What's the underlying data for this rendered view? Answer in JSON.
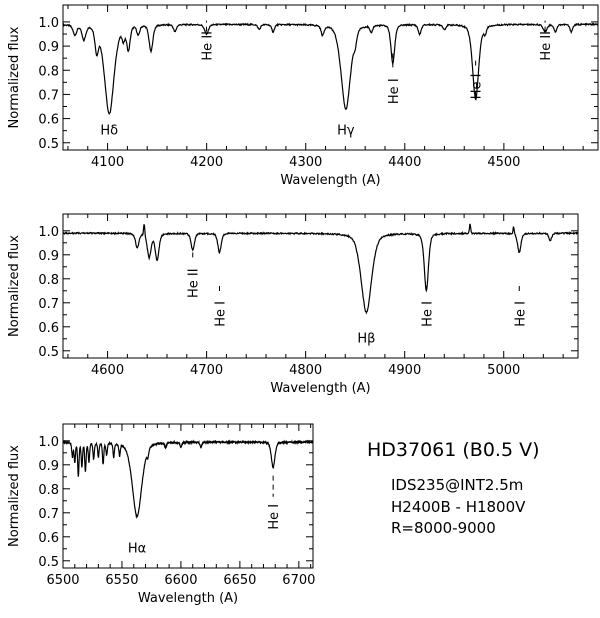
{
  "chart_data": [
    {
      "type": "line",
      "xlabel": "Wavelength (A)",
      "ylabel": "Normalized flux",
      "xlim": [
        4055,
        4595
      ],
      "ylim": [
        0.47,
        1.07
      ],
      "xticks": [
        4100,
        4200,
        4300,
        4400,
        4500
      ],
      "yticks": [
        0.5,
        0.6,
        0.7,
        0.8,
        0.9,
        1.0
      ],
      "continuum": 0.99,
      "lines": [
        {
          "x": 4067,
          "depth": 0.04,
          "width": 2
        },
        {
          "x": 4076,
          "depth": 0.06,
          "width": 2
        },
        {
          "x": 4089,
          "depth": 0.1,
          "width": 1.8
        },
        {
          "x": 4101.7,
          "depth": 0.37,
          "width": 5
        },
        {
          "x": 4116,
          "depth": 0.05,
          "width": 1.6
        },
        {
          "x": 4121,
          "depth": 0.1,
          "width": 1.8
        },
        {
          "x": 4131,
          "depth": 0.04,
          "width": 1.5
        },
        {
          "x": 4143.8,
          "depth": 0.11,
          "width": 2
        },
        {
          "x": 4168,
          "depth": 0.03,
          "width": 1.5
        },
        {
          "x": 4199.8,
          "depth": 0.04,
          "width": 2
        },
        {
          "x": 4253,
          "depth": 0.02,
          "width": 1.5
        },
        {
          "x": 4267,
          "depth": 0.03,
          "width": 1.5
        },
        {
          "x": 4317,
          "depth": 0.04,
          "width": 1.6
        },
        {
          "x": 4340.5,
          "depth": 0.35,
          "width": 5
        },
        {
          "x": 4350,
          "depth": 0.04,
          "width": 1.5
        },
        {
          "x": 4366,
          "depth": 0.03,
          "width": 1.5
        },
        {
          "x": 4387.9,
          "depth": 0.16,
          "width": 2
        },
        {
          "x": 4415,
          "depth": 0.04,
          "width": 1.6
        },
        {
          "x": 4440,
          "depth": 0.02,
          "width": 1.5
        },
        {
          "x": 4471.5,
          "depth": 0.31,
          "width": 3.2
        },
        {
          "x": 4481,
          "depth": 0.03,
          "width": 1.5
        },
        {
          "x": 4541.6,
          "depth": 0.03,
          "width": 2
        },
        {
          "x": 4552,
          "depth": 0.03,
          "width": 1.5
        },
        {
          "x": 4568,
          "depth": 0.03,
          "width": 1.5
        }
      ],
      "annotations": [
        {
          "text": "Hδ",
          "x": 4101.7,
          "y": 0.535,
          "orient": "horizontal"
        },
        {
          "text": "Hγ",
          "x": 4340.5,
          "y": 0.535,
          "orient": "horizontal"
        },
        {
          "text": "He II",
          "x": 4199.8,
          "y": 0.84,
          "ytop": 0.96,
          "orient": "vertical"
        },
        {
          "text": "He I",
          "x": 4387.9,
          "y": 0.66,
          "ytop": 0.87,
          "orient": "vertical"
        },
        {
          "text": "He I",
          "x": 4471.5,
          "y": 0.68,
          "ytop": 0.84,
          "orient": "vertical"
        },
        {
          "text": "He II",
          "x": 4541.6,
          "y": 0.84,
          "ytop": 0.96,
          "orient": "vertical"
        }
      ]
    },
    {
      "type": "line",
      "xlabel": "Wavelength (A)",
      "ylabel": "Normalized flux",
      "xlim": [
        4555,
        5075
      ],
      "ylim": [
        0.47,
        1.07
      ],
      "xticks": [
        4600,
        4700,
        4800,
        4900,
        5000
      ],
      "yticks": [
        0.5,
        0.6,
        0.7,
        0.8,
        0.9,
        1.0
      ],
      "continuum": 0.99,
      "lines": [
        {
          "x": 4630,
          "depth": 0.06,
          "width": 1.8
        },
        {
          "x": 4642,
          "depth": 0.1,
          "width": 2
        },
        {
          "x": 4650,
          "depth": 0.11,
          "width": 2
        },
        {
          "x": 4686,
          "depth": 0.07,
          "width": 1.8
        },
        {
          "x": 4713,
          "depth": 0.08,
          "width": 1.8
        },
        {
          "x": 4861.3,
          "depth": 0.33,
          "width": 5.5
        },
        {
          "x": 4921.9,
          "depth": 0.24,
          "width": 2.2
        },
        {
          "x": 5015.7,
          "depth": 0.08,
          "width": 1.8
        },
        {
          "x": 5047,
          "depth": 0.03,
          "width": 1.5
        }
      ],
      "spikes": [
        {
          "x": 4637,
          "height": 0.05
        },
        {
          "x": 4966,
          "height": 0.04
        },
        {
          "x": 5010,
          "height": 0.03
        }
      ],
      "annotations": [
        {
          "text": "Hβ",
          "x": 4861.3,
          "y": 0.535,
          "orient": "horizontal"
        },
        {
          "text": "He II",
          "x": 4686,
          "y": 0.72,
          "ytop": 0.91,
          "orient": "vertical"
        },
        {
          "text": "He I",
          "x": 4713,
          "y": 0.6,
          "ytop": 0.77,
          "orient": "vertical"
        },
        {
          "text": "He I",
          "x": 4921.9,
          "y": 0.6,
          "ytop": 0.77,
          "orient": "vertical"
        },
        {
          "text": "He I",
          "x": 5015.7,
          "y": 0.6,
          "ytop": 0.77,
          "orient": "vertical"
        }
      ]
    },
    {
      "type": "line",
      "xlabel": "Wavelength (A)",
      "ylabel": "Normalized flux",
      "xlim": [
        6500,
        6712
      ],
      "ylim": [
        0.47,
        1.07
      ],
      "xticks": [
        6500,
        6550,
        6600,
        6650,
        6700
      ],
      "yticks": [
        0.5,
        0.6,
        0.7,
        0.8,
        0.9,
        1.0
      ],
      "continuum": 0.995,
      "lines": [
        {
          "x": 6508,
          "depth": 0.06,
          "width": 0.6
        },
        {
          "x": 6510,
          "depth": 0.08,
          "width": 0.6
        },
        {
          "x": 6513,
          "depth": 0.14,
          "width": 0.6
        },
        {
          "x": 6516,
          "depth": 0.1,
          "width": 0.6
        },
        {
          "x": 6519,
          "depth": 0.12,
          "width": 0.6
        },
        {
          "x": 6522,
          "depth": 0.08,
          "width": 0.6
        },
        {
          "x": 6526,
          "depth": 0.07,
          "width": 0.6
        },
        {
          "x": 6530,
          "depth": 0.06,
          "width": 0.6
        },
        {
          "x": 6534,
          "depth": 0.09,
          "width": 0.6
        },
        {
          "x": 6537,
          "depth": 0.05,
          "width": 0.6
        },
        {
          "x": 6543,
          "depth": 0.06,
          "width": 0.6
        },
        {
          "x": 6548,
          "depth": 0.05,
          "width": 0.6
        },
        {
          "x": 6562.8,
          "depth": 0.31,
          "width": 4.2
        },
        {
          "x": 6572,
          "depth": 0.03,
          "width": 0.8
        },
        {
          "x": 6587,
          "depth": 0.02,
          "width": 0.8
        },
        {
          "x": 6600,
          "depth": 0.02,
          "width": 0.8
        },
        {
          "x": 6617,
          "depth": 0.02,
          "width": 0.8
        },
        {
          "x": 6678.2,
          "depth": 0.105,
          "width": 1.6
        }
      ],
      "annotations": [
        {
          "text": "Hα",
          "x": 6562.8,
          "y": 0.535,
          "orient": "horizontal"
        },
        {
          "text": "He I",
          "x": 6678.2,
          "y": 0.63,
          "ytop": 0.855,
          "orient": "vertical"
        }
      ]
    }
  ],
  "info": {
    "title": "HD37061 (B0.5 V)",
    "instrument": "IDS235@INT2.5m",
    "gratings": "H2400B - H1800V",
    "resolution": "R=8000-9000"
  }
}
